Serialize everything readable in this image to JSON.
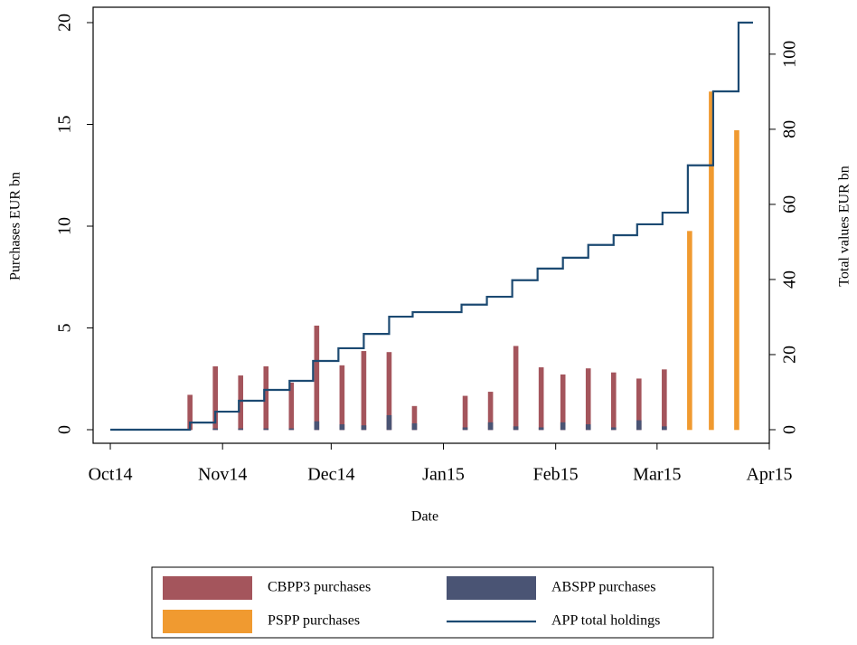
{
  "chart_data": {
    "type": "bar-line",
    "x_label": "Date",
    "y_label": "Purchases EUR bn",
    "y2_label": "Total values EUR bn",
    "xlim": [
      -4.75,
      182
    ],
    "xticks": [
      {
        "value": 0,
        "label": "Oct14"
      },
      {
        "value": 31,
        "label": "Nov14"
      },
      {
        "value": 61,
        "label": "Dec14"
      },
      {
        "value": 92,
        "label": "Jan15"
      },
      {
        "value": 123,
        "label": "Feb15"
      },
      {
        "value": 151,
        "label": "Mar15"
      },
      {
        "value": 182,
        "label": "Apr15"
      }
    ],
    "ylim": [
      0,
      20
    ],
    "yticks": [
      0,
      5,
      10,
      15,
      20
    ],
    "y2lim": [
      0,
      108.4
    ],
    "y2ticks": [
      0,
      20,
      40,
      60,
      80,
      100
    ],
    "series": [
      {
        "name": "CBPP3 purchases",
        "kind": "bar",
        "color": "#a4555c",
        "x": [
          22,
          29,
          36,
          43,
          50,
          57,
          64,
          70,
          77,
          84,
          98,
          105,
          112,
          119,
          125,
          132,
          139,
          146,
          153,
          160,
          166,
          173
        ],
        "values": [
          1.7,
          3.1,
          2.65,
          3.1,
          2.3,
          5.1,
          3.15,
          3.85,
          3.8,
          1.15,
          1.65,
          1.85,
          4.1,
          3.05,
          2.7,
          3.0,
          2.8,
          2.5,
          2.95,
          null,
          null,
          null
        ]
      },
      {
        "name": "ABSPP purchases",
        "kind": "bar",
        "color": "#4a5474",
        "x": [
          22,
          29,
          36,
          43,
          50,
          57,
          64,
          70,
          77,
          84,
          98,
          105,
          112,
          119,
          125,
          132,
          139,
          146,
          153,
          160,
          166,
          173
        ],
        "values": [
          0,
          0.05,
          0.05,
          0.05,
          0.05,
          0.4,
          0.25,
          0.2,
          0.7,
          0.3,
          0.1,
          0.35,
          0.15,
          0.1,
          0.35,
          0.25,
          0.1,
          0.45,
          0.15,
          null,
          null,
          null
        ]
      },
      {
        "name": "PSPP purchases",
        "kind": "bar",
        "color": "#f09a30",
        "x": [
          160,
          166,
          173
        ],
        "values": [
          9.75,
          16.6,
          14.7
        ]
      },
      {
        "name": "APP total holdings",
        "kind": "step",
        "axis": "y2",
        "color": "#1c4a72",
        "x": [
          0,
          22,
          29,
          35.5,
          42.5,
          49.5,
          56,
          63,
          70,
          77,
          83.5,
          97,
          104,
          111,
          118,
          125,
          132,
          139,
          145.5,
          152.5,
          159.5,
          166.5,
          173.5,
          177.5
        ],
        "values": [
          0,
          1.9,
          4.8,
          7.7,
          10.6,
          13,
          18.3,
          21.7,
          25.5,
          30.1,
          31.3,
          33.3,
          35.4,
          39.8,
          42.9,
          45.8,
          49.2,
          51.8,
          54.7,
          57.8,
          70.4,
          90.1,
          108.4,
          108.4
        ]
      }
    ]
  }
}
